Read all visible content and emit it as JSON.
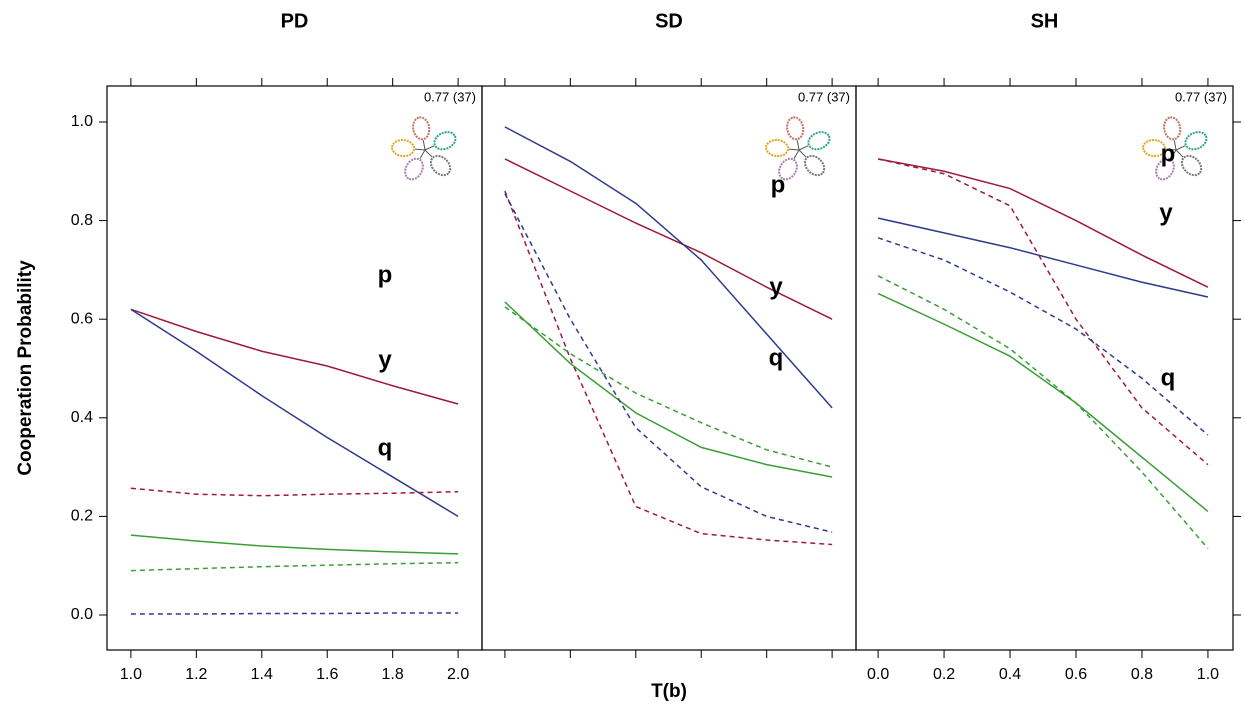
{
  "chart_data": [
    {
      "type": "line",
      "title": "PD",
      "ylabel": "Cooperation Probability",
      "annotation": "0.77 (37)",
      "x": [
        1.0,
        1.2,
        1.4,
        1.6,
        1.8,
        2.0
      ],
      "xlim": [
        0.927,
        2.073
      ],
      "xticks": [
        {
          "value": 1,
          "label": "1.0"
        },
        1.2,
        1.4,
        1.6,
        1.8,
        {
          "value": 2,
          "label": "2.0"
        }
      ],
      "show_xtick_labels": true,
      "ylim": [
        -0.071,
        1.073
      ],
      "yticks": [
        {
          "value": 0,
          "label": "0.0"
        },
        0.2,
        0.4,
        0.6,
        0.8,
        {
          "value": 1,
          "label": "1.0"
        }
      ],
      "series": [
        {
          "name": "p",
          "color": "#9e1a3a",
          "dashed": false,
          "values": [
            0.62,
            0.575,
            0.535,
            0.505,
            0.465,
            0.428
          ]
        },
        {
          "name": "y",
          "color": "#2f3a8f",
          "dashed": false,
          "values": [
            0.62,
            0.535,
            0.445,
            0.36,
            0.28,
            0.2
          ]
        },
        {
          "name": "q",
          "color": "#3a9e35",
          "dashed": false,
          "values": [
            0.162,
            0.15,
            0.14,
            0.133,
            0.128,
            0.124
          ]
        },
        {
          "color": "#9e1a3a",
          "dashed": true,
          "values": [
            0.257,
            0.245,
            0.242,
            0.245,
            0.247,
            0.25
          ]
        },
        {
          "color": "#2f3a8f",
          "dashed": true,
          "values": [
            0.002,
            0.002,
            0.003,
            0.003,
            0.004,
            0.004
          ]
        },
        {
          "color": "#3a9e35",
          "dashed": true,
          "values": [
            0.09,
            0.094,
            0.098,
            0.101,
            0.104,
            0.106
          ]
        }
      ]
    },
    {
      "type": "line",
      "title": "SD",
      "xlabel": "T(b)",
      "annotation": "0.77 (37)",
      "x": [
        0,
        0.2,
        0.4,
        0.6,
        0.8,
        1.0
      ],
      "xlim": [
        -0.07,
        1.073
      ],
      "xticks": [
        0,
        0.2,
        0.4,
        0.6,
        0.8,
        1
      ],
      "show_xtick_labels": false,
      "ylim": [
        -0.071,
        1.073
      ],
      "series": [
        {
          "name": "p",
          "color": "#9e1a3a",
          "dashed": false,
          "values": [
            0.925,
            0.86,
            0.795,
            0.735,
            0.665,
            0.6
          ]
        },
        {
          "name": "y",
          "color": "#2f3a8f",
          "dashed": false,
          "values": [
            0.99,
            0.92,
            0.835,
            0.72,
            0.57,
            0.42
          ]
        },
        {
          "name": "q",
          "color": "#3a9e35",
          "dashed": false,
          "values": [
            0.635,
            0.51,
            0.41,
            0.34,
            0.305,
            0.28
          ]
        },
        {
          "color": "#9e1a3a",
          "dashed": true,
          "values": [
            0.86,
            0.52,
            0.22,
            0.165,
            0.152,
            0.143
          ]
        },
        {
          "color": "#2f3a8f",
          "dashed": true,
          "values": [
            0.855,
            0.6,
            0.38,
            0.26,
            0.2,
            0.168
          ]
        },
        {
          "color": "#3a9e35",
          "dashed": true,
          "values": [
            0.625,
            0.53,
            0.45,
            0.39,
            0.335,
            0.3
          ]
        }
      ]
    },
    {
      "type": "line",
      "title": "SH",
      "annotation": "0.77 (37)",
      "x": [
        0,
        0.2,
        0.4,
        0.6,
        0.8,
        1.0
      ],
      "xlim": [
        -0.067,
        1.076
      ],
      "xticks": [
        {
          "value": 0,
          "label": "0.0"
        },
        0.2,
        0.4,
        0.6,
        0.8,
        {
          "value": 1,
          "label": "1.0"
        }
      ],
      "show_xtick_labels": true,
      "ylim": [
        -0.071,
        1.073
      ],
      "yticks": [
        0,
        0.2,
        0.4,
        0.6,
        0.8,
        1
      ],
      "series": [
        {
          "name": "p",
          "color": "#9e1a3a",
          "dashed": false,
          "values": [
            0.925,
            0.9,
            0.865,
            0.8,
            0.73,
            0.665
          ]
        },
        {
          "name": "y",
          "color": "#2f3a8f",
          "dashed": false,
          "values": [
            0.805,
            0.775,
            0.745,
            0.71,
            0.675,
            0.645
          ]
        },
        {
          "name": "q",
          "color": "#3a9e35",
          "dashed": false,
          "values": [
            0.652,
            0.59,
            0.525,
            0.43,
            0.32,
            0.21
          ]
        },
        {
          "color": "#9e1a3a",
          "dashed": true,
          "values": [
            0.925,
            0.895,
            0.83,
            0.6,
            0.42,
            0.305
          ]
        },
        {
          "color": "#2f3a8f",
          "dashed": true,
          "values": [
            0.765,
            0.72,
            0.655,
            0.58,
            0.48,
            0.365
          ]
        },
        {
          "color": "#3a9e35",
          "dashed": true,
          "values": [
            0.688,
            0.62,
            0.54,
            0.43,
            0.29,
            0.135
          ]
        }
      ]
    }
  ]
}
